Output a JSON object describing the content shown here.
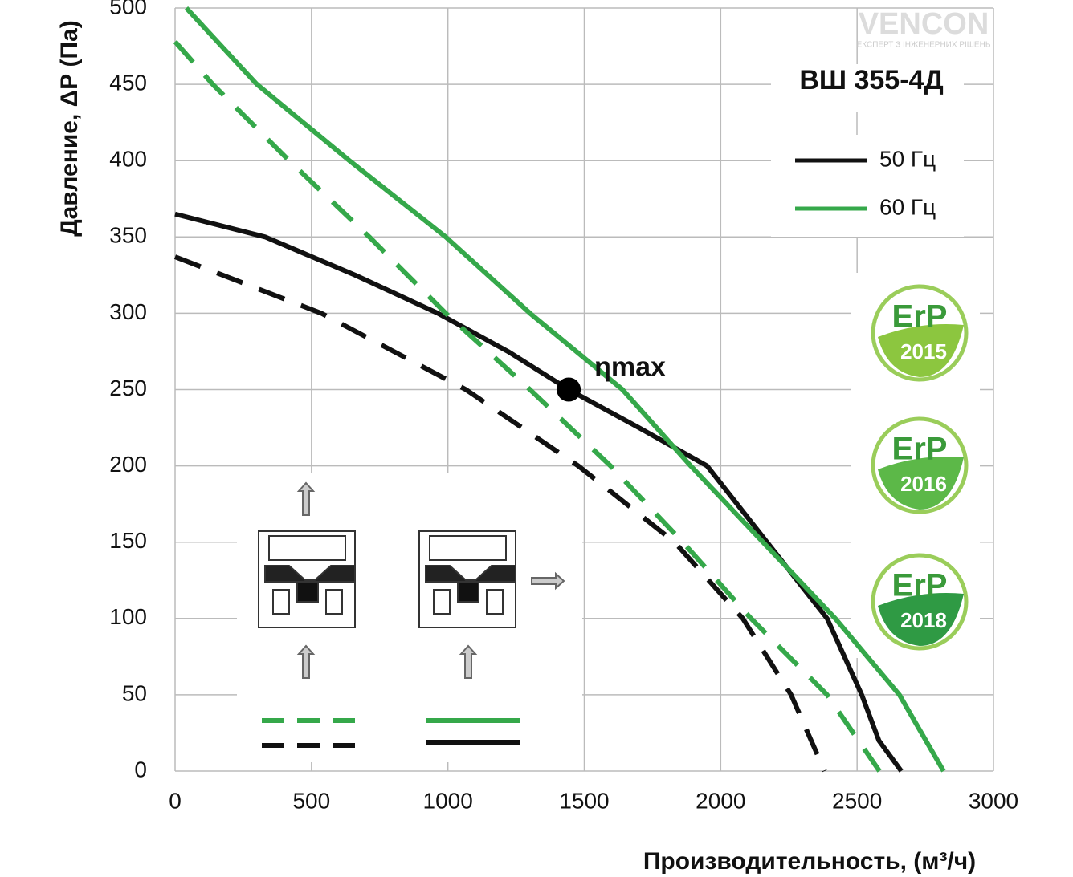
{
  "chart_data": {
    "type": "line",
    "title": "ВШ 355-4Д",
    "xlabel": "Производительность, (м³/ч)",
    "ylabel": "Давление, ΔР (Па)",
    "xlim": [
      0,
      3000
    ],
    "ylim": [
      0,
      500
    ],
    "xticks": [
      0,
      500,
      1000,
      1500,
      2000,
      2500,
      3000
    ],
    "yticks": [
      0,
      50,
      100,
      150,
      200,
      250,
      300,
      350,
      400,
      450,
      500
    ],
    "grid": true,
    "series": [
      {
        "name": "50 Гц",
        "color": "#111111",
        "dash": false,
        "x": [
          0,
          330,
          660,
          963,
          1220,
          1443,
          1700,
          1950,
          2170,
          2390,
          2517,
          2580,
          2662
        ],
        "y": [
          365,
          350,
          325,
          300,
          275,
          250,
          225,
          200,
          150,
          100,
          50,
          20,
          0
        ]
      },
      {
        "name": "60 Гц",
        "color": "#35a84a",
        "dash": false,
        "x": [
          41,
          300,
          639,
          992,
          1301,
          1640,
          1890,
          2155,
          2420,
          2655,
          2817
        ],
        "y": [
          500,
          450,
          400,
          350,
          300,
          250,
          200,
          150,
          100,
          50,
          0
        ]
      },
      {
        "color": "#111111",
        "dash": true,
        "x": [
          0,
          536,
          1066,
          1478,
          1831,
          2081,
          2258,
          2381
        ],
        "y": [
          337,
          300,
          250,
          200,
          150,
          100,
          50,
          0
        ]
      },
      {
        "color": "#35a84a",
        "dash": true,
        "x": [
          0,
          138,
          418,
          712,
          992,
          1301,
          1596,
          1861,
          2111,
          2390,
          2582
        ],
        "y": [
          478,
          450,
          400,
          350,
          300,
          250,
          200,
          150,
          100,
          50,
          0
        ]
      }
    ],
    "annotations": [
      {
        "text": "ηmax",
        "x": 1443,
        "y": 250
      }
    ]
  },
  "logo": {
    "name": "VENCON",
    "tagline": "ЕКСПЕРТ З ІНЖЕНЕРНИХ РІШЕНЬ"
  },
  "badges": {
    "label": "ErP",
    "years": [
      "2015",
      "2016",
      "2018"
    ]
  }
}
